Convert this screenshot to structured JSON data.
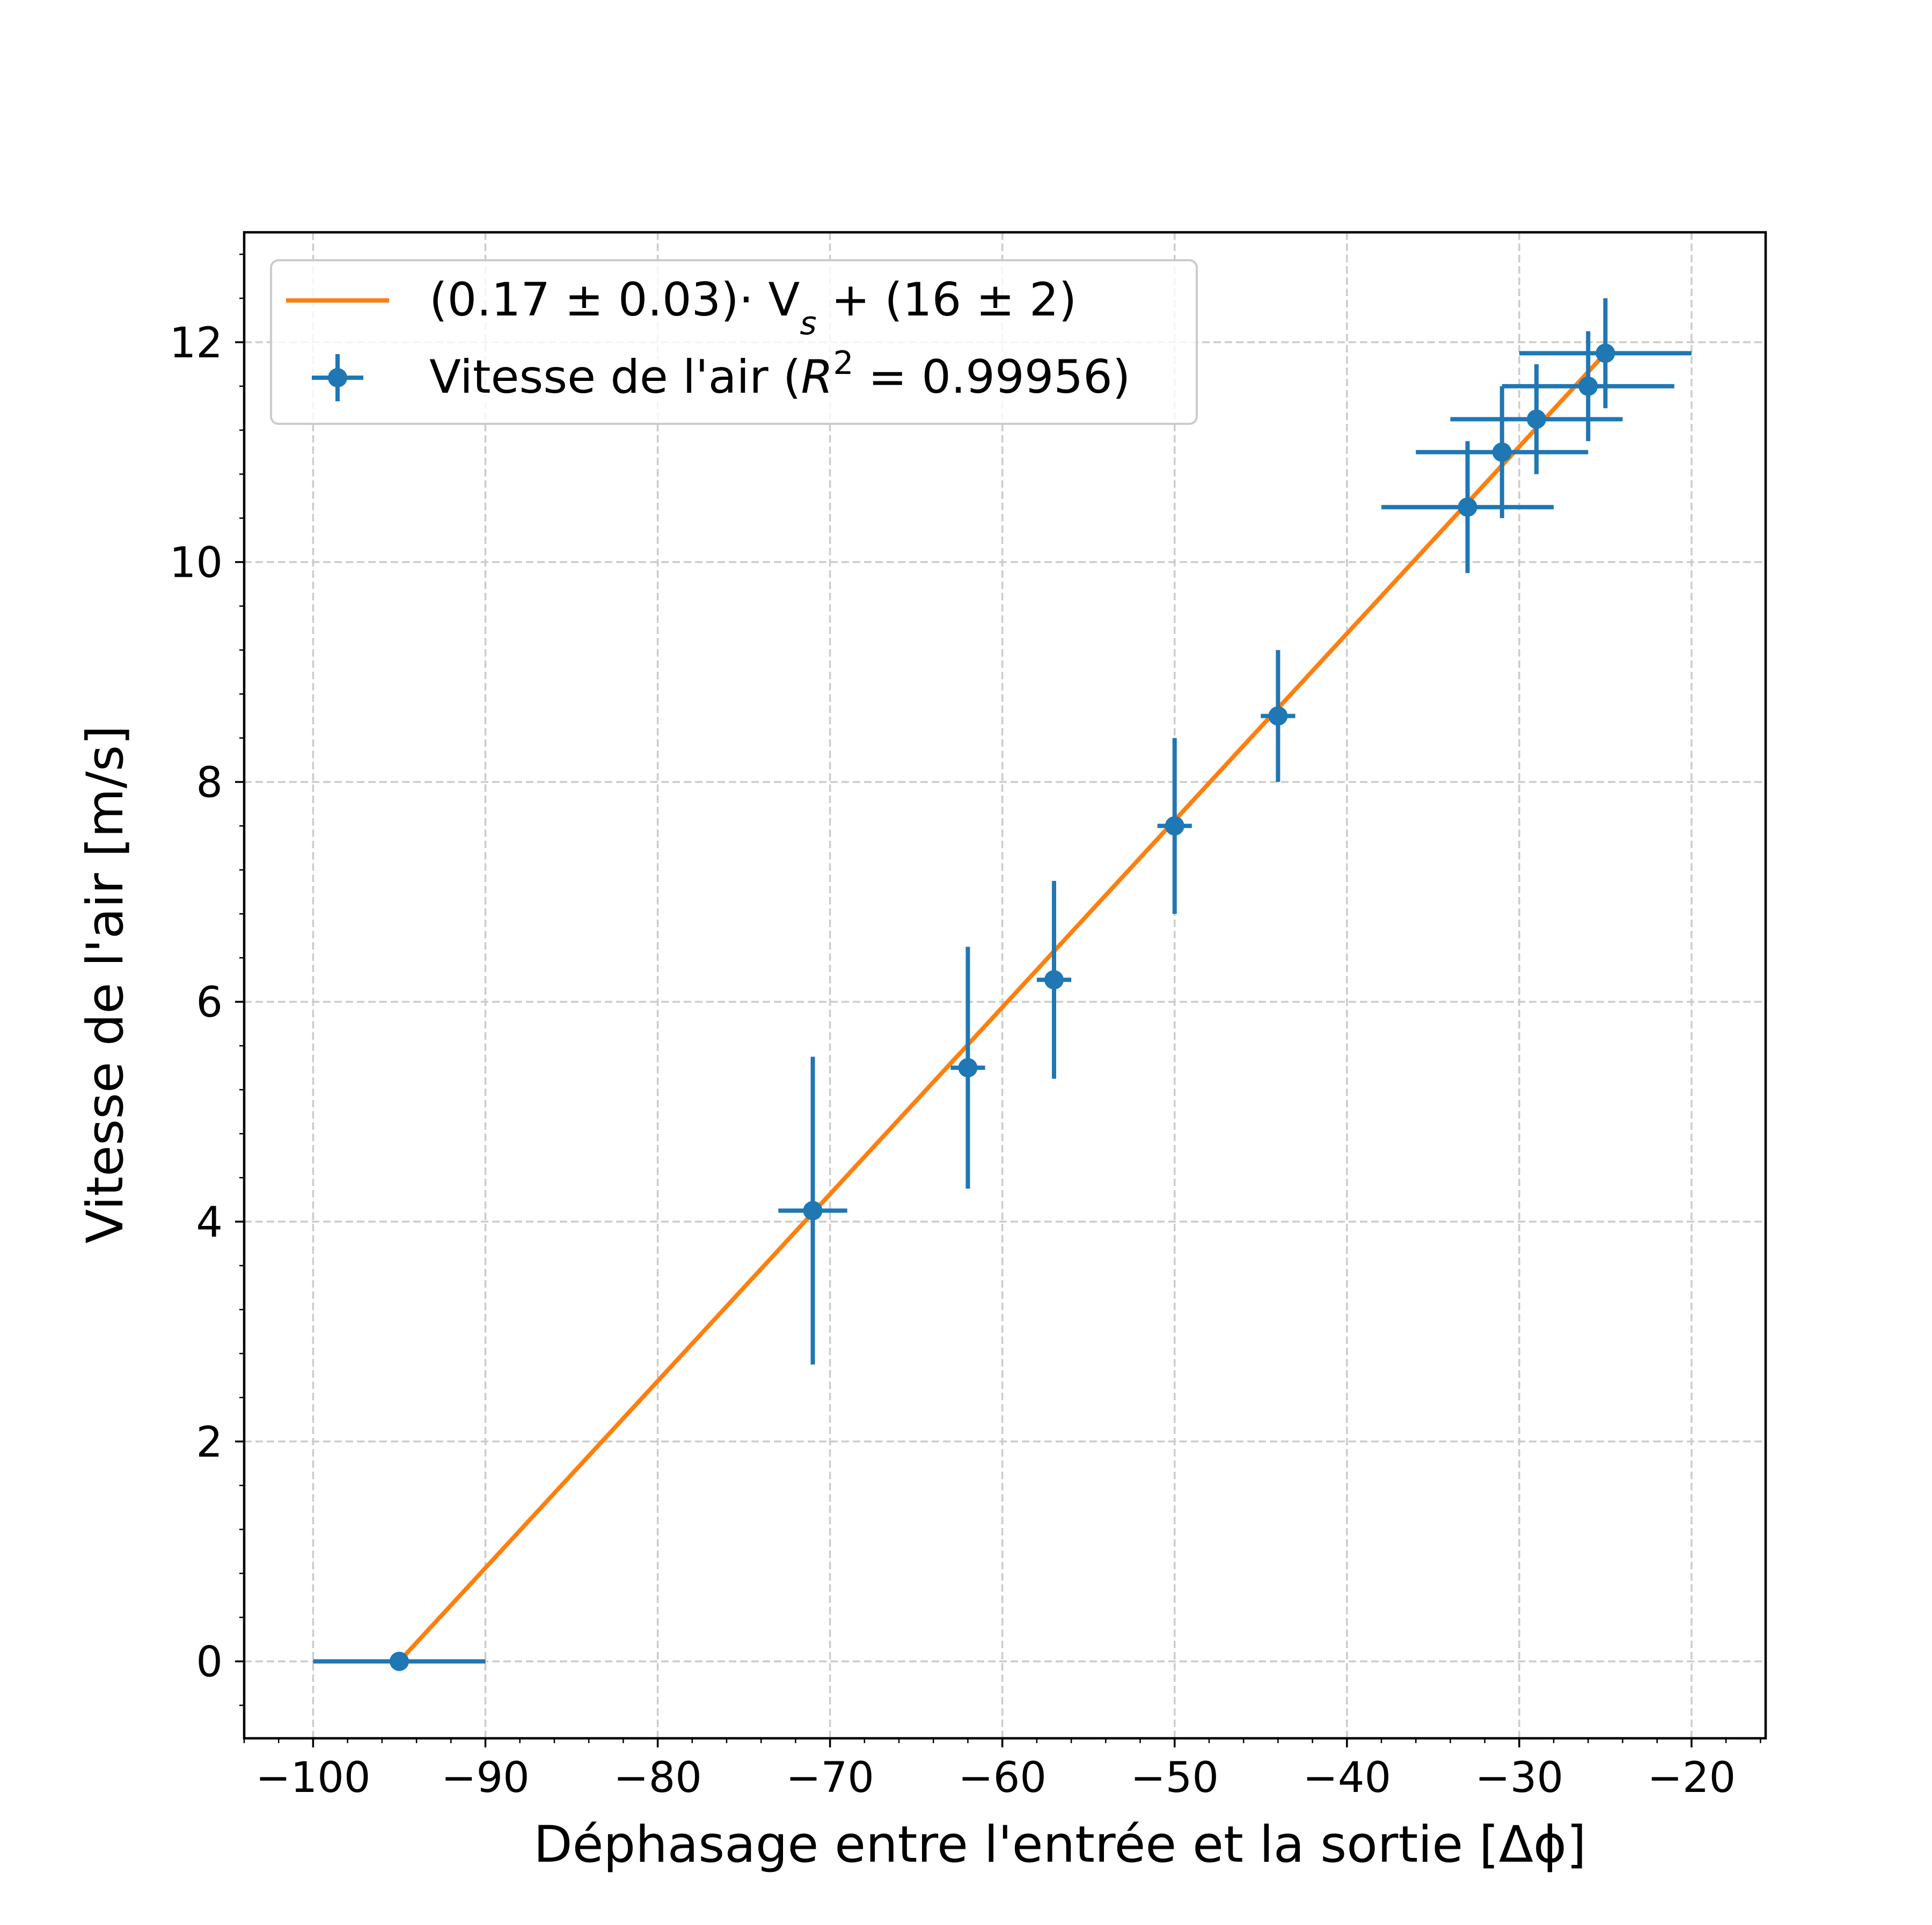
{
  "chart_data": {
    "type": "scatter",
    "xlabel": "Déphasage entre l'entrée et la sortie [Δϕ]",
    "ylabel": "Vitesse de l'air [m/s]",
    "xlim": [
      -104,
      -15.7
    ],
    "ylim": [
      -0.7,
      13.0
    ],
    "xticks": [
      -100,
      -90,
      -80,
      -70,
      -60,
      -50,
      -40,
      -30,
      -20
    ],
    "xtick_labels": [
      "−100",
      "−90",
      "−80",
      "−70",
      "−60",
      "−50",
      "−40",
      "−30",
      "−20"
    ],
    "yticks": [
      0,
      2,
      4,
      6,
      8,
      10,
      12
    ],
    "ytick_labels": [
      "0",
      "2",
      "4",
      "6",
      "8",
      "10",
      "12"
    ],
    "x_minor_step": 2,
    "y_minor_step": 0.4,
    "grid": true,
    "legend_placement": "top-left",
    "colors": {
      "data": "#1f77b4",
      "fit": "#ff7f0e",
      "grid": "#cccccc"
    },
    "series": [
      {
        "name": "Vitesse de l'air (R² = 0.99956)",
        "kind": "errorbar",
        "points": [
          {
            "x": -95,
            "y": 0.0,
            "xerr": 5,
            "yerr": 0.0
          },
          {
            "x": -71,
            "y": 4.1,
            "xerr": 2,
            "yerr": 1.4
          },
          {
            "x": -62,
            "y": 5.4,
            "xerr": 1,
            "yerr": 1.1
          },
          {
            "x": -57,
            "y": 6.2,
            "xerr": 1,
            "yerr": 0.9
          },
          {
            "x": -50,
            "y": 7.6,
            "xerr": 1,
            "yerr": 0.8
          },
          {
            "x": -44,
            "y": 8.6,
            "xerr": 1,
            "yerr": 0.6
          },
          {
            "x": -33,
            "y": 10.5,
            "xerr": 5,
            "yerr": 0.6
          },
          {
            "x": -31,
            "y": 11.0,
            "xerr": 5,
            "yerr": 0.6
          },
          {
            "x": -29,
            "y": 11.3,
            "xerr": 5,
            "yerr": 0.5
          },
          {
            "x": -26,
            "y": 11.6,
            "xerr": 5,
            "yerr": 0.5
          },
          {
            "x": -25,
            "y": 11.9,
            "xerr": 5,
            "yerr": 0.5
          }
        ]
      },
      {
        "name": "(0.17 ± 0.03)· Vs + (16 ± 2)",
        "kind": "line",
        "slope": 0.17,
        "intercept": 16.15,
        "x_range": [
          -95,
          -25
        ]
      }
    ],
    "legend": {
      "fit_label": "(0.17 ± 0.03)· V",
      "fit_label_sub": "s",
      "fit_label_rest": " + (16 ± 2)",
      "data_label": "Vitesse de l'air (",
      "data_label_var": "R",
      "data_label_sup": "2",
      "data_label_rest": " = 0.99956)"
    }
  }
}
